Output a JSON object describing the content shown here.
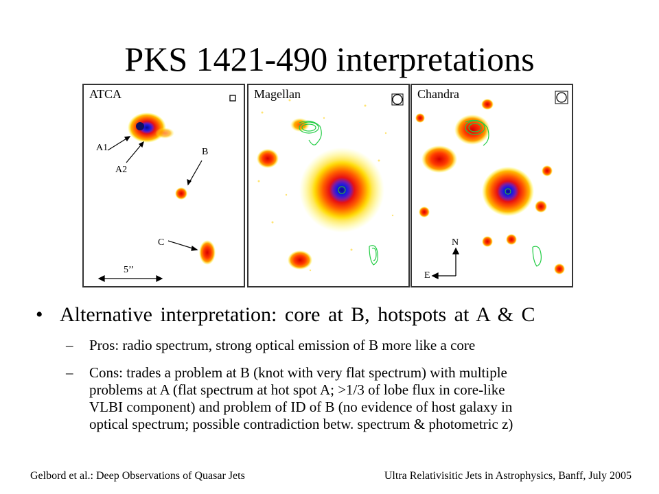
{
  "slide": {
    "title": "PKS 1421-490 interpretations",
    "panels": [
      {
        "label": "ATCA",
        "annotations": [
          "A1",
          "A2",
          "B",
          "C",
          "5’’"
        ]
      },
      {
        "label": "Magellan"
      },
      {
        "label": "Chandra",
        "compass": [
          "N",
          "E"
        ]
      }
    ],
    "bullet": {
      "symbol": "•",
      "text": "Alternative interpretation: core at B, hotspots at A & C"
    },
    "subbullets": [
      {
        "symbol": "–",
        "lines": [
          "Pros: radio spectrum, strong optical emission of B more like a core"
        ]
      },
      {
        "symbol": "–",
        "lines": [
          "Cons: trades a problem at B (knot with very flat spectrum) with multiple",
          "problems at A (flat spectrum at hot spot A; >1/3 of lobe flux in core-like",
          "VLBI component) and problem of ID of B (no evidence of host galaxy in",
          "optical spectrum; possible contradiction betw. spectrum & photometric z)"
        ]
      }
    ],
    "footer": {
      "left": "Gelbord et al.: Deep Observations of Quasar Jets",
      "right": "Ultra Relativisitic Jets in Astrophysics, Banff, July 2005"
    }
  }
}
